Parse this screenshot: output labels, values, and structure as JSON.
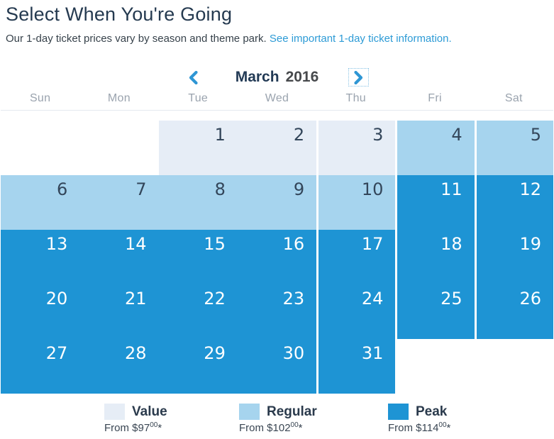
{
  "page": {
    "title": "Select When You're Going",
    "subtitle": "Our 1-day ticket prices vary by season and theme park. ",
    "link_text": "See important 1-day ticket information."
  },
  "nav": {
    "month": "March",
    "year": "2016",
    "prev_icon": "chevron-left-icon",
    "next_icon": "chevron-right-icon"
  },
  "calendar": {
    "weekdays": [
      "Sun",
      "Mon",
      "Tue",
      "Wed",
      "Thu",
      "Fri",
      "Sat"
    ],
    "weeks": [
      [
        {
          "day": "",
          "tier": "none"
        },
        {
          "day": "",
          "tier": "none"
        },
        {
          "day": "1",
          "tier": "value"
        },
        {
          "day": "2",
          "tier": "value"
        },
        {
          "day": "3",
          "tier": "value"
        },
        {
          "day": "4",
          "tier": "regular"
        },
        {
          "day": "5",
          "tier": "regular"
        }
      ],
      [
        {
          "day": "6",
          "tier": "regular"
        },
        {
          "day": "7",
          "tier": "regular"
        },
        {
          "day": "8",
          "tier": "regular"
        },
        {
          "day": "9",
          "tier": "regular"
        },
        {
          "day": "10",
          "tier": "regular"
        },
        {
          "day": "11",
          "tier": "peak"
        },
        {
          "day": "12",
          "tier": "peak"
        }
      ],
      [
        {
          "day": "13",
          "tier": "peak"
        },
        {
          "day": "14",
          "tier": "peak"
        },
        {
          "day": "15",
          "tier": "peak"
        },
        {
          "day": "16",
          "tier": "peak"
        },
        {
          "day": "17",
          "tier": "peak"
        },
        {
          "day": "18",
          "tier": "peak"
        },
        {
          "day": "19",
          "tier": "peak"
        }
      ],
      [
        {
          "day": "20",
          "tier": "peak"
        },
        {
          "day": "21",
          "tier": "peak"
        },
        {
          "day": "22",
          "tier": "peak"
        },
        {
          "day": "23",
          "tier": "peak"
        },
        {
          "day": "24",
          "tier": "peak"
        },
        {
          "day": "25",
          "tier": "peak"
        },
        {
          "day": "26",
          "tier": "peak"
        }
      ],
      [
        {
          "day": "27",
          "tier": "peak"
        },
        {
          "day": "28",
          "tier": "peak"
        },
        {
          "day": "29",
          "tier": "peak"
        },
        {
          "day": "30",
          "tier": "peak"
        },
        {
          "day": "31",
          "tier": "peak"
        },
        {
          "day": "",
          "tier": "none"
        },
        {
          "day": "",
          "tier": "none"
        }
      ]
    ]
  },
  "colors": {
    "value": "#e6edf6",
    "regular": "#a6d4ee",
    "peak": "#1e94d4",
    "accent_blue": "#2e96d4",
    "link_blue": "#2d9bd6",
    "title_text": "#253a50",
    "weekday_text": "#9aa3ae"
  },
  "legend": {
    "items": [
      {
        "tier": "value",
        "label": "Value",
        "from": "From $97",
        "cents": "00",
        "suffix": "*"
      },
      {
        "tier": "regular",
        "label": "Regular",
        "from": "From $102",
        "cents": "00",
        "suffix": "*"
      },
      {
        "tier": "peak",
        "label": "Peak",
        "from": "From $114",
        "cents": "00",
        "suffix": "*"
      }
    ]
  }
}
